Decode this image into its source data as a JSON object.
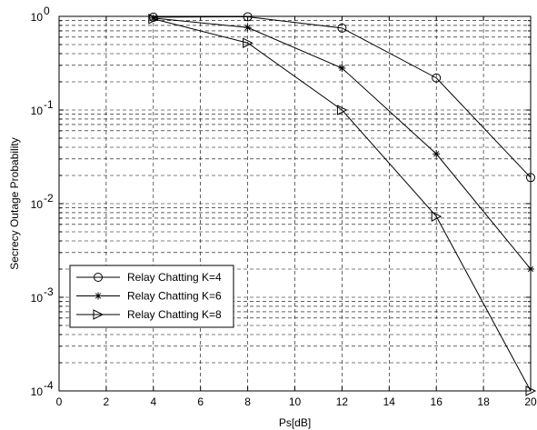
{
  "chart_data": {
    "type": "line",
    "title": "",
    "xlabel": "Ps[dB]",
    "ylabel": "Secrecy Outage Probability",
    "xlim": [
      0,
      20
    ],
    "ylim": [
      0.0001,
      1
    ],
    "yscale": "log",
    "grid": true,
    "legend_position": "lower-left",
    "x_ticks": [
      "0",
      "2",
      "4",
      "6",
      "8",
      "10",
      "12",
      "14",
      "16",
      "18",
      "20"
    ],
    "y_ticks": [
      {
        "base": "10",
        "exp": "-4",
        "value": 0.0001
      },
      {
        "base": "10",
        "exp": "-3",
        "value": 0.001
      },
      {
        "base": "10",
        "exp": "-2",
        "value": 0.01
      },
      {
        "base": "10",
        "exp": "-1",
        "value": 0.1
      },
      {
        "base": "10",
        "exp": "0",
        "value": 1
      }
    ],
    "x": [
      4,
      8,
      12,
      16,
      20
    ],
    "series": [
      {
        "name": "Relay Chatting K=4",
        "marker": "circle",
        "values": [
          0.98,
          0.99,
          0.75,
          0.22,
          0.019
        ]
      },
      {
        "name": "Relay Chatting K=6",
        "marker": "star",
        "values": [
          0.96,
          0.76,
          0.28,
          0.034,
          0.002
        ]
      },
      {
        "name": "Relay Chatting K=8",
        "marker": "triangle-right",
        "values": [
          0.94,
          0.52,
          0.1,
          0.0073,
          0.0001
        ]
      }
    ],
    "line_color": "#000000"
  }
}
